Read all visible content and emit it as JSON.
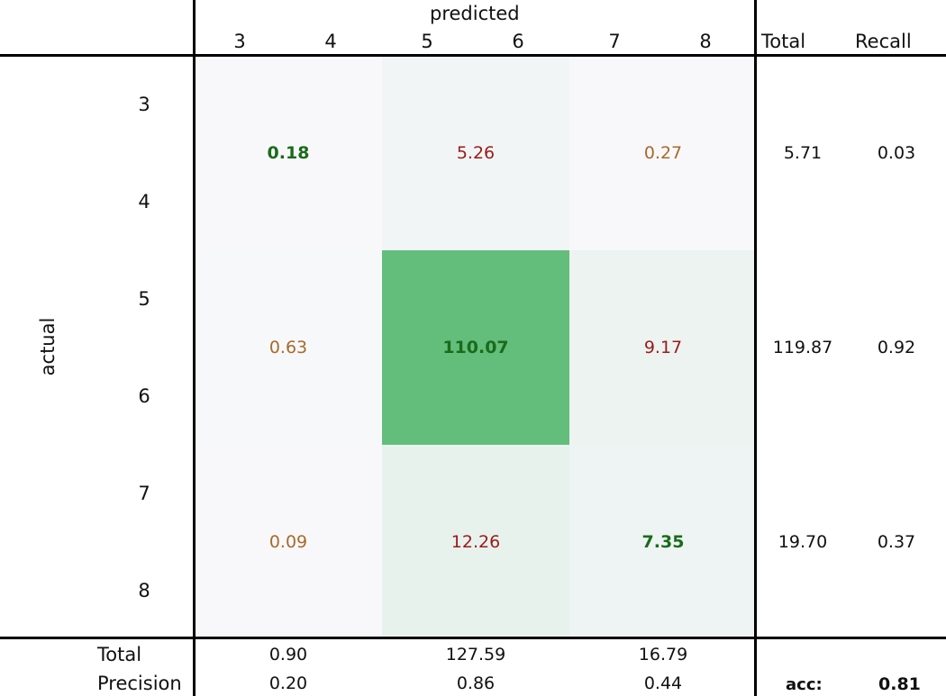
{
  "chart_data": {
    "type": "heatmap",
    "xlabel": "predicted",
    "ylabel": "actual",
    "x_tick_labels": [
      "3",
      "4",
      "5",
      "6",
      "7",
      "8"
    ],
    "y_tick_labels": [
      "3",
      "4",
      "5",
      "6",
      "7",
      "8"
    ],
    "column_groups": [
      "3-4",
      "5-6",
      "7-8"
    ],
    "row_groups": [
      "3-4",
      "5-6",
      "7-8"
    ],
    "values": [
      [
        0.18,
        5.26,
        0.27
      ],
      [
        0.63,
        110.07,
        9.17
      ],
      [
        0.09,
        12.26,
        7.35
      ]
    ],
    "value_labels": [
      [
        "0.18",
        "5.26",
        "0.27"
      ],
      [
        "0.63",
        "110.07",
        "9.17"
      ],
      [
        "0.09",
        "12.26",
        "7.35"
      ]
    ],
    "text_colors": [
      [
        "#1a6b1a",
        "#9a1b1b",
        "#a86a2a"
      ],
      [
        "#a86a2a",
        "#1a6b1a",
        "#9a1b1b"
      ],
      [
        "#a86a2a",
        "#9a1b1b",
        "#1a6b1a"
      ]
    ],
    "bold_cells": [
      [
        true,
        false,
        false
      ],
      [
        false,
        true,
        false
      ],
      [
        false,
        false,
        true
      ]
    ],
    "color_scale": {
      "low": "#f8f8fb",
      "high": "#63be7b"
    },
    "total_header": "Total",
    "recall_header": "Recall",
    "row_totals": [
      "5.71",
      "119.87",
      "19.70"
    ],
    "recall": [
      "0.03",
      "0.92",
      "0.37"
    ],
    "total_label": "Total",
    "precision_label": "Precision",
    "col_totals": [
      "0.90",
      "127.59",
      "16.79"
    ],
    "precision": [
      "0.20",
      "0.86",
      "0.44"
    ],
    "acc_label": "acc:",
    "acc_value": "0.81"
  }
}
